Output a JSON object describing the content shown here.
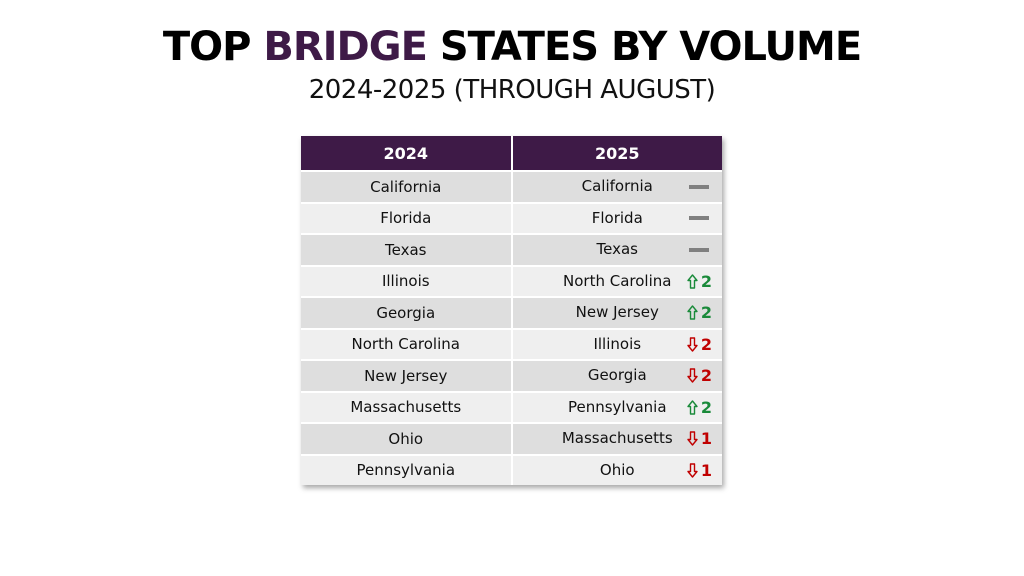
{
  "title": {
    "part1": "TOP ",
    "part2": "BRIDGE",
    "part3": " STATES BY VOLUME"
  },
  "subtitle": "2024-2025 (THROUGH AUGUST)",
  "colors": {
    "header_bg": "#3e1a47",
    "up": "#1a8a3a",
    "down": "#c00000",
    "same": "#808080"
  },
  "table": {
    "headers": [
      "2024",
      "2025"
    ],
    "rows": [
      {
        "y2024": "California",
        "y2025": "California",
        "dir": "same",
        "change": ""
      },
      {
        "y2024": "Florida",
        "y2025": "Florida",
        "dir": "same",
        "change": ""
      },
      {
        "y2024": "Texas",
        "y2025": "Texas",
        "dir": "same",
        "change": ""
      },
      {
        "y2024": "Illinois",
        "y2025": "North Carolina",
        "dir": "up",
        "change": "2"
      },
      {
        "y2024": "Georgia",
        "y2025": "New Jersey",
        "dir": "up",
        "change": "2"
      },
      {
        "y2024": "North Carolina",
        "y2025": "Illinois",
        "dir": "down",
        "change": "2"
      },
      {
        "y2024": "New Jersey",
        "y2025": "Georgia",
        "dir": "down",
        "change": "2"
      },
      {
        "y2024": "Massachusetts",
        "y2025": "Pennsylvania",
        "dir": "up",
        "change": "2"
      },
      {
        "y2024": "Ohio",
        "y2025": "Massachusetts",
        "dir": "down",
        "change": "1"
      },
      {
        "y2024": "Pennsylvania",
        "y2025": "Ohio",
        "dir": "down",
        "change": "1"
      }
    ]
  }
}
